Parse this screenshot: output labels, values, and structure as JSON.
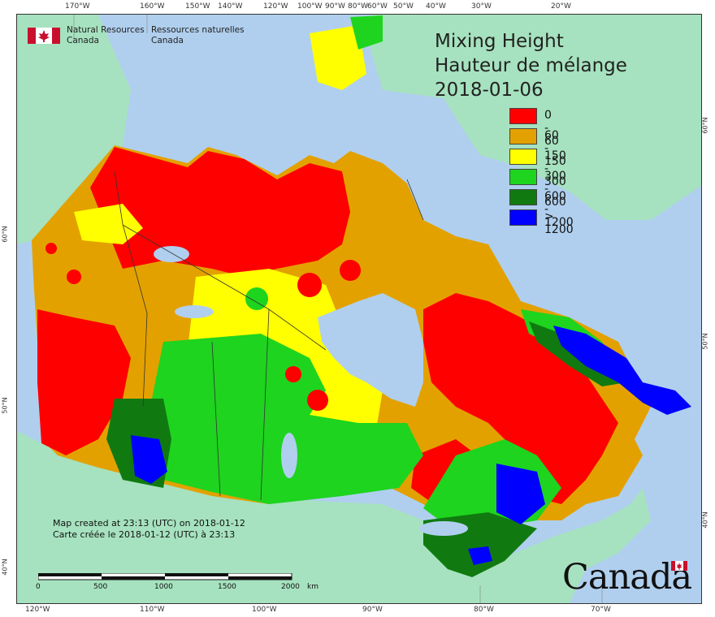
{
  "agency": {
    "name_en_line1": "Natural Resources",
    "name_en_line2": "Canada",
    "name_fr_line1": "Ressources naturelles",
    "name_fr_line2": "Canada"
  },
  "title": {
    "line1": "Mixing Height",
    "line2": "Hauteur de mélange",
    "date": "2018-01-06"
  },
  "legend": [
    {
      "label": "0 - 60",
      "color": "#ff0000"
    },
    {
      "label": "60 - 150",
      "color": "#e3a100"
    },
    {
      "label": "150 - 300",
      "color": "#ffff00"
    },
    {
      "label": "300 - 600",
      "color": "#1ed41e"
    },
    {
      "label": "600 - 1200",
      "color": "#107a10"
    },
    {
      "label": "> 1200",
      "color": "#0000ff"
    }
  ],
  "top_ticks": [
    "170°W",
    "160°W",
    "150°W",
    "140°W",
    "120°W",
    "100°W",
    "90°W",
    "80°W",
    "60°W",
    "50°W",
    "40°W",
    "30°W",
    "20°W"
  ],
  "bottom_ticks": [
    "120°W",
    "110°W",
    "100°W",
    "90°W",
    "80°W",
    "70°W"
  ],
  "left_ticks": [
    "60°N",
    "50°N",
    "40°N"
  ],
  "right_ticks": [
    "60°N",
    "50°N",
    "40°N"
  ],
  "credit": {
    "line_en": "Map created at 23:13 (UTC) on 2018-01-12",
    "line_fr": "Carte créée le 2018-01-12 (UTC) à 23:13"
  },
  "scale": {
    "labels": [
      "0",
      "500",
      "1000",
      "1500",
      "2000"
    ],
    "unit": "km"
  },
  "wordmark": "Canada",
  "colors": {
    "water": "#b0cfee",
    "foreign_land": "#a6e2bf",
    "border": "#333333"
  }
}
